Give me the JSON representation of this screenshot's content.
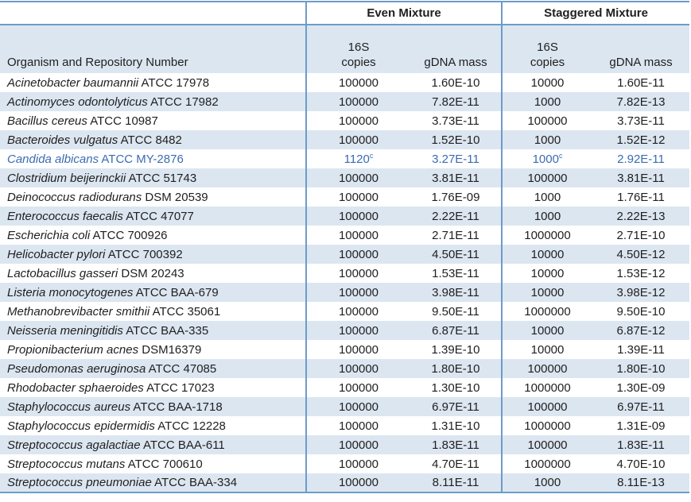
{
  "colors": {
    "border": "#6d9bc9",
    "row_shade": "#dce6f1",
    "text": "#1f1f1f",
    "highlight_text": "#3a6cb3"
  },
  "table": {
    "organism_header": "Organism and Repository Number",
    "group_headers": [
      {
        "label": "Even Mixture"
      },
      {
        "label": "Staggered Mixture"
      }
    ],
    "subheaders": {
      "copies_line1": "16S",
      "copies_line2": "copies",
      "gdna": "gDNA mass"
    },
    "rows": [
      {
        "name": "Acinetobacter baumannii",
        "strain": "ATCC 17978",
        "even_copies": "100000",
        "even_gdna": "1.60E-10",
        "stag_copies": "10000",
        "stag_gdna": "1.60E-11",
        "highlight": false
      },
      {
        "name": "Actinomyces odontolyticus",
        "strain": "ATCC 17982",
        "even_copies": "100000",
        "even_gdna": "7.82E-11",
        "stag_copies": "1000",
        "stag_gdna": "7.82E-13",
        "highlight": false
      },
      {
        "name": "Bacillus cereus",
        "strain": "ATCC 10987",
        "even_copies": "100000",
        "even_gdna": "3.73E-11",
        "stag_copies": "100000",
        "stag_gdna": "3.73E-11",
        "highlight": false
      },
      {
        "name": "Bacteroides vulgatus",
        "strain": "ATCC 8482",
        "even_copies": "100000",
        "even_gdna": "1.52E-10",
        "stag_copies": "1000",
        "stag_gdna": "1.52E-12",
        "highlight": false
      },
      {
        "name": "Candida albicans",
        "strain": "ATCC MY-2876",
        "even_copies": "1120",
        "even_copies_sup": "c",
        "even_gdna": "3.27E-11",
        "stag_copies": "1000",
        "stag_copies_sup": "c",
        "stag_gdna": "2.92E-11",
        "highlight": true
      },
      {
        "name": "Clostridium beijerinckii",
        "strain": "ATCC 51743",
        "even_copies": "100000",
        "even_gdna": "3.81E-11",
        "stag_copies": "100000",
        "stag_gdna": "3.81E-11",
        "highlight": false
      },
      {
        "name": "Deinococcus radiodurans",
        "strain": "DSM 20539",
        "even_copies": "100000",
        "even_gdna": "1.76E-09",
        "stag_copies": "1000",
        "stag_gdna": "1.76E-11",
        "highlight": false
      },
      {
        "name": "Enterococcus faecalis",
        "strain": "ATCC 47077",
        "even_copies": "100000",
        "even_gdna": "2.22E-11",
        "stag_copies": "1000",
        "stag_gdna": "2.22E-13",
        "highlight": false
      },
      {
        "name": "Escherichia coli",
        "strain": "ATCC 700926",
        "even_copies": "100000",
        "even_gdna": "2.71E-11",
        "stag_copies": "1000000",
        "stag_gdna": "2.71E-10",
        "highlight": false
      },
      {
        "name": "Helicobacter pylori",
        "strain": "ATCC 700392",
        "even_copies": "100000",
        "even_gdna": "4.50E-11",
        "stag_copies": "10000",
        "stag_gdna": "4.50E-12",
        "highlight": false
      },
      {
        "name": "Lactobacillus gasseri",
        "strain": "DSM 20243",
        "even_copies": "100000",
        "even_gdna": "1.53E-11",
        "stag_copies": "10000",
        "stag_gdna": "1.53E-12",
        "highlight": false
      },
      {
        "name": "Listeria monocytogenes",
        "strain": "ATCC BAA-679",
        "even_copies": "100000",
        "even_gdna": "3.98E-11",
        "stag_copies": "10000",
        "stag_gdna": "3.98E-12",
        "highlight": false
      },
      {
        "name": "Methanobrevibacter smithii",
        "strain": "ATCC 35061",
        "even_copies": "100000",
        "even_gdna": "9.50E-11",
        "stag_copies": "1000000",
        "stag_gdna": "9.50E-10",
        "highlight": false
      },
      {
        "name": "Neisseria meningitidis",
        "strain": "ATCC BAA-335",
        "even_copies": "100000",
        "even_gdna": "6.87E-11",
        "stag_copies": "10000",
        "stag_gdna": "6.87E-12",
        "highlight": false
      },
      {
        "name": "Propionibacterium acnes",
        "strain": "DSM16379",
        "even_copies": "100000",
        "even_gdna": "1.39E-10",
        "stag_copies": "10000",
        "stag_gdna": "1.39E-11",
        "highlight": false
      },
      {
        "name": "Pseudomonas aeruginosa",
        "strain": "ATCC 47085",
        "even_copies": "100000",
        "even_gdna": "1.80E-10",
        "stag_copies": "100000",
        "stag_gdna": "1.80E-10",
        "highlight": false
      },
      {
        "name": "Rhodobacter sphaeroides",
        "strain": "ATCC 17023",
        "even_copies": "100000",
        "even_gdna": "1.30E-10",
        "stag_copies": "1000000",
        "stag_gdna": "1.30E-09",
        "highlight": false
      },
      {
        "name": "Staphylococcus aureus",
        "strain": "ATCC BAA-1718",
        "even_copies": "100000",
        "even_gdna": "6.97E-11",
        "stag_copies": "100000",
        "stag_gdna": "6.97E-11",
        "highlight": false
      },
      {
        "name": "Staphylococcus epidermidis",
        "strain": "ATCC 12228",
        "even_copies": "100000",
        "even_gdna": "1.31E-10",
        "stag_copies": "1000000",
        "stag_gdna": "1.31E-09",
        "highlight": false
      },
      {
        "name": "Streptococcus agalactiae",
        "strain": "ATCC BAA-611",
        "even_copies": "100000",
        "even_gdna": "1.83E-11",
        "stag_copies": "100000",
        "stag_gdna": "1.83E-11",
        "highlight": false
      },
      {
        "name": "Streptococcus mutans",
        "strain": "ATCC 700610",
        "even_copies": "100000",
        "even_gdna": "4.70E-11",
        "stag_copies": "1000000",
        "stag_gdna": "4.70E-10",
        "highlight": false
      },
      {
        "name": "Streptococcus pneumoniae",
        "strain": "ATCC BAA-334",
        "even_copies": "100000",
        "even_gdna": "8.11E-11",
        "stag_copies": "1000",
        "stag_gdna": "8.11E-13",
        "highlight": false
      }
    ]
  }
}
